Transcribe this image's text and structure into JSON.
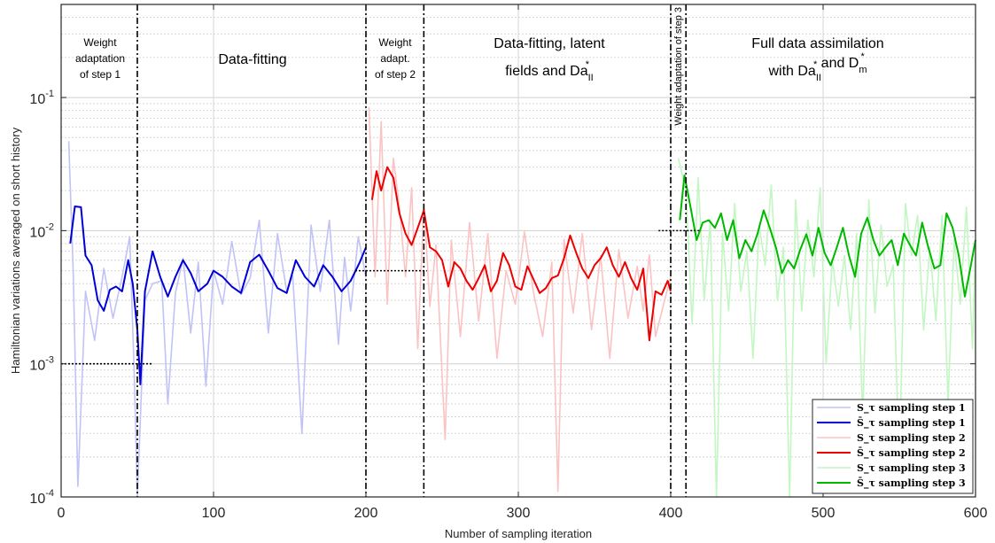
{
  "chart_data": {
    "type": "line",
    "title": "",
    "xlabel": "Number of sampling iteration",
    "ylabel": "Hamiltonian variations averaged on short history",
    "xlim": [
      0,
      600
    ],
    "ylim": [
      0.0001,
      0.5
    ],
    "yscale": "log",
    "grid": true,
    "legend_position": "bottom-right",
    "x_ticks": [
      "0",
      "100",
      "200",
      "300",
      "400",
      "500",
      "600"
    ],
    "y_ticks": [
      {
        "base": "10",
        "exp": "-4"
      },
      {
        "base": "10",
        "exp": "-3"
      },
      {
        "base": "10",
        "exp": "-2"
      },
      {
        "base": "10",
        "exp": "-1"
      }
    ],
    "phase_boundaries": [
      50,
      200,
      238,
      400,
      410
    ],
    "thresholds": [
      {
        "x": [
          0,
          60
        ],
        "y": 0.001
      },
      {
        "x": [
          193,
          240
        ],
        "y": 0.005
      },
      {
        "x": [
          392,
          420
        ],
        "y": 0.01
      }
    ],
    "annotations": [
      {
        "lines": [
          "Weight",
          "adaptation",
          "of step 1"
        ]
      },
      {
        "lines": [
          "Data-fitting"
        ]
      },
      {
        "lines": [
          "Weight",
          "adapt.",
          "of step 2"
        ]
      },
      {
        "lines": [
          "Data-fitting, latent",
          "fields and Da_II^*"
        ]
      },
      {
        "lines": [
          "Weight adaptation of step 3"
        ]
      },
      {
        "lines": [
          "Full data assimilation",
          "with Da_II^* and D_m^*"
        ]
      }
    ],
    "series": [
      {
        "name": "S_τ sampling step 1",
        "color": "#c0c3f6",
        "x_range": [
          5,
          200
        ],
        "keypoints": [
          [
            5,
            0.047
          ],
          [
            8,
            0.0045
          ],
          [
            11,
            0.00012
          ],
          [
            16,
            0.0035
          ],
          [
            22,
            0.0015
          ],
          [
            28,
            0.0052
          ],
          [
            34,
            0.0022
          ],
          [
            40,
            0.0045
          ],
          [
            45,
            0.009
          ],
          [
            48,
            0.0008
          ],
          [
            50,
            0.0001
          ],
          [
            55,
            0.003
          ],
          [
            60,
            0.004
          ],
          [
            66,
            0.0042
          ],
          [
            70,
            0.0005
          ],
          [
            75,
            0.0034
          ],
          [
            80,
            0.0062
          ],
          [
            85,
            0.0017
          ],
          [
            90,
            0.0058
          ],
          [
            95,
            0.00068
          ],
          [
            100,
            0.005
          ],
          [
            106,
            0.0028
          ],
          [
            112,
            0.0083
          ],
          [
            118,
            0.0033
          ],
          [
            124,
            0.0044
          ],
          [
            130,
            0.012
          ],
          [
            136,
            0.0017
          ],
          [
            142,
            0.0095
          ],
          [
            148,
            0.0035
          ],
          [
            152,
            0.0046
          ],
          [
            158,
            0.0003
          ],
          [
            164,
            0.011
          ],
          [
            170,
            0.0035
          ],
          [
            176,
            0.012
          ],
          [
            182,
            0.0014
          ],
          [
            186,
            0.0063
          ],
          [
            190,
            0.0025
          ],
          [
            195,
            0.009
          ],
          [
            200,
            0.0045
          ]
        ]
      },
      {
        "name": "S̄_τ sampling step 1",
        "color": "#0000d6",
        "x_range": [
          6,
          200
        ],
        "keypoints": [
          [
            6,
            0.008
          ],
          [
            9,
            0.0152
          ],
          [
            13,
            0.015
          ],
          [
            16,
            0.0065
          ],
          [
            20,
            0.0055
          ],
          [
            24,
            0.003
          ],
          [
            28,
            0.0025
          ],
          [
            32,
            0.0036
          ],
          [
            36,
            0.0038
          ],
          [
            40,
            0.0035
          ],
          [
            44,
            0.006
          ],
          [
            47,
            0.004
          ],
          [
            50,
            0.0018
          ],
          [
            52,
            0.0007
          ],
          [
            55,
            0.0035
          ],
          [
            60,
            0.007
          ],
          [
            65,
            0.0045
          ],
          [
            70,
            0.0032
          ],
          [
            75,
            0.0045
          ],
          [
            80,
            0.006
          ],
          [
            85,
            0.0048
          ],
          [
            90,
            0.0035
          ],
          [
            96,
            0.004
          ],
          [
            100,
            0.005
          ],
          [
            106,
            0.0045
          ],
          [
            112,
            0.0038
          ],
          [
            118,
            0.0034
          ],
          [
            124,
            0.0058
          ],
          [
            130,
            0.0066
          ],
          [
            136,
            0.005
          ],
          [
            142,
            0.0037
          ],
          [
            148,
            0.0034
          ],
          [
            154,
            0.006
          ],
          [
            160,
            0.0045
          ],
          [
            166,
            0.0038
          ],
          [
            172,
            0.0055
          ],
          [
            178,
            0.0045
          ],
          [
            184,
            0.0035
          ],
          [
            190,
            0.0042
          ],
          [
            196,
            0.0058
          ],
          [
            200,
            0.0075
          ]
        ]
      },
      {
        "name": "S_τ sampling step 2",
        "color": "#fbc3c3",
        "x_range": [
          200,
          400
        ],
        "keypoints": [
          [
            202,
            0.085
          ],
          [
            206,
            0.0045
          ],
          [
            210,
            0.066
          ],
          [
            214,
            0.0028
          ],
          [
            218,
            0.035
          ],
          [
            222,
            0.015
          ],
          [
            226,
            0.0045
          ],
          [
            230,
            0.021
          ],
          [
            234,
            0.0013
          ],
          [
            238,
            0.016
          ],
          [
            242,
            0.0027
          ],
          [
            246,
            0.0078
          ],
          [
            252,
            0.00027
          ],
          [
            256,
            0.0085
          ],
          [
            262,
            0.0016
          ],
          [
            268,
            0.0115
          ],
          [
            274,
            0.0021
          ],
          [
            280,
            0.0095
          ],
          [
            286,
            0.0011
          ],
          [
            292,
            0.005
          ],
          [
            298,
            0.0028
          ],
          [
            304,
            0.0098
          ],
          [
            310,
            0.0034
          ],
          [
            316,
            0.0016
          ],
          [
            322,
            0.0058
          ],
          [
            326,
            0.00011
          ],
          [
            330,
            0.0086
          ],
          [
            336,
            0.0024
          ],
          [
            342,
            0.0095
          ],
          [
            348,
            0.0018
          ],
          [
            354,
            0.0065
          ],
          [
            360,
            0.0011
          ],
          [
            366,
            0.0072
          ],
          [
            372,
            0.0022
          ],
          [
            378,
            0.0054
          ],
          [
            382,
            0.0025
          ],
          [
            386,
            0.0066
          ],
          [
            390,
            0.0016
          ],
          [
            396,
            0.003
          ],
          [
            400,
            0.0045
          ]
        ]
      },
      {
        "name": "S̄_τ sampling step 2",
        "color": "#ec0000",
        "x_range": [
          204,
          400
        ],
        "keypoints": [
          [
            204,
            0.017
          ],
          [
            207,
            0.028
          ],
          [
            210,
            0.02
          ],
          [
            214,
            0.03
          ],
          [
            218,
            0.025
          ],
          [
            222,
            0.0135
          ],
          [
            226,
            0.0095
          ],
          [
            230,
            0.0078
          ],
          [
            234,
            0.0105
          ],
          [
            238,
            0.0142
          ],
          [
            242,
            0.0075
          ],
          [
            246,
            0.007
          ],
          [
            250,
            0.006
          ],
          [
            254,
            0.0038
          ],
          [
            258,
            0.0058
          ],
          [
            262,
            0.0052
          ],
          [
            266,
            0.0042
          ],
          [
            270,
            0.0036
          ],
          [
            274,
            0.0044
          ],
          [
            278,
            0.0055
          ],
          [
            282,
            0.0035
          ],
          [
            286,
            0.0042
          ],
          [
            290,
            0.0068
          ],
          [
            294,
            0.0055
          ],
          [
            298,
            0.0038
          ],
          [
            302,
            0.0036
          ],
          [
            306,
            0.0054
          ],
          [
            310,
            0.0043
          ],
          [
            314,
            0.0034
          ],
          [
            318,
            0.0037
          ],
          [
            322,
            0.0044
          ],
          [
            326,
            0.0046
          ],
          [
            330,
            0.0062
          ],
          [
            334,
            0.0092
          ],
          [
            338,
            0.0068
          ],
          [
            342,
            0.0052
          ],
          [
            346,
            0.0044
          ],
          [
            350,
            0.0055
          ],
          [
            354,
            0.0062
          ],
          [
            358,
            0.0075
          ],
          [
            362,
            0.0055
          ],
          [
            366,
            0.0045
          ],
          [
            370,
            0.0058
          ],
          [
            374,
            0.0044
          ],
          [
            378,
            0.0036
          ],
          [
            382,
            0.0052
          ],
          [
            386,
            0.0015
          ],
          [
            390,
            0.0035
          ],
          [
            394,
            0.0033
          ],
          [
            398,
            0.0042
          ],
          [
            400,
            0.0035
          ]
        ]
      },
      {
        "name": "S_τ sampling step 3",
        "color": "#c2f7c2",
        "x_range": [
          405,
          600
        ],
        "keypoints": [
          [
            405,
            0.035
          ],
          [
            410,
            0.02
          ],
          [
            414,
            0.002
          ],
          [
            418,
            0.025
          ],
          [
            422,
            0.003
          ],
          [
            426,
            0.012
          ],
          [
            430,
            0.0001
          ],
          [
            434,
            0.0095
          ],
          [
            438,
            0.0025
          ],
          [
            442,
            0.016
          ],
          [
            446,
            0.0035
          ],
          [
            450,
            0.007
          ],
          [
            454,
            0.0011
          ],
          [
            458,
            0.011
          ],
          [
            462,
            0.0055
          ],
          [
            466,
            0.022
          ],
          [
            470,
            0.003
          ],
          [
            474,
            0.0075
          ],
          [
            478,
            0.0001
          ],
          [
            482,
            0.017
          ],
          [
            486,
            0.0025
          ],
          [
            490,
            0.012
          ],
          [
            494,
            0.0045
          ],
          [
            498,
            0.021
          ],
          [
            502,
            0.001
          ],
          [
            506,
            0.006
          ],
          [
            510,
            0.0027
          ],
          [
            514,
            0.0065
          ],
          [
            518,
            0.0018
          ],
          [
            522,
            0.0095
          ],
          [
            526,
            0.00039
          ],
          [
            530,
            0.017
          ],
          [
            534,
            0.0024
          ],
          [
            538,
            0.011
          ],
          [
            542,
            0.0038
          ],
          [
            546,
            0.0055
          ],
          [
            550,
            0.00017
          ],
          [
            554,
            0.016
          ],
          [
            558,
            0.0065
          ],
          [
            562,
            0.013
          ],
          [
            566,
            0.0018
          ],
          [
            570,
            0.0075
          ],
          [
            574,
            0.0021
          ],
          [
            578,
            0.013
          ],
          [
            582,
            0.0005
          ],
          [
            586,
            0.0085
          ],
          [
            590,
            0.0028
          ],
          [
            594,
            0.015
          ],
          [
            598,
            0.0013
          ],
          [
            600,
            0.0085
          ]
        ]
      },
      {
        "name": "S̄_τ sampling step 3",
        "color": "#00b800",
        "x_range": [
          406,
          600
        ],
        "keypoints": [
          [
            406,
            0.012
          ],
          [
            409,
            0.026
          ],
          [
            413,
            0.015
          ],
          [
            417,
            0.0085
          ],
          [
            421,
            0.0115
          ],
          [
            425,
            0.012
          ],
          [
            429,
            0.0105
          ],
          [
            433,
            0.0135
          ],
          [
            437,
            0.0085
          ],
          [
            441,
            0.012
          ],
          [
            445,
            0.0062
          ],
          [
            449,
            0.0085
          ],
          [
            453,
            0.007
          ],
          [
            457,
            0.0095
          ],
          [
            461,
            0.0142
          ],
          [
            465,
            0.0105
          ],
          [
            469,
            0.0075
          ],
          [
            473,
            0.0048
          ],
          [
            477,
            0.006
          ],
          [
            481,
            0.0052
          ],
          [
            485,
            0.0072
          ],
          [
            489,
            0.0094
          ],
          [
            493,
            0.0065
          ],
          [
            497,
            0.0105
          ],
          [
            501,
            0.0068
          ],
          [
            505,
            0.0055
          ],
          [
            509,
            0.0075
          ],
          [
            513,
            0.0105
          ],
          [
            517,
            0.0065
          ],
          [
            521,
            0.0045
          ],
          [
            525,
            0.0095
          ],
          [
            529,
            0.0125
          ],
          [
            533,
            0.0085
          ],
          [
            537,
            0.0065
          ],
          [
            541,
            0.0075
          ],
          [
            545,
            0.0085
          ],
          [
            549,
            0.0055
          ],
          [
            553,
            0.0095
          ],
          [
            557,
            0.0078
          ],
          [
            561,
            0.0065
          ],
          [
            565,
            0.0115
          ],
          [
            569,
            0.0075
          ],
          [
            573,
            0.0052
          ],
          [
            577,
            0.0055
          ],
          [
            581,
            0.0135
          ],
          [
            585,
            0.0105
          ],
          [
            589,
            0.0065
          ],
          [
            593,
            0.0032
          ],
          [
            597,
            0.0055
          ],
          [
            600,
            0.0085
          ]
        ]
      }
    ]
  }
}
